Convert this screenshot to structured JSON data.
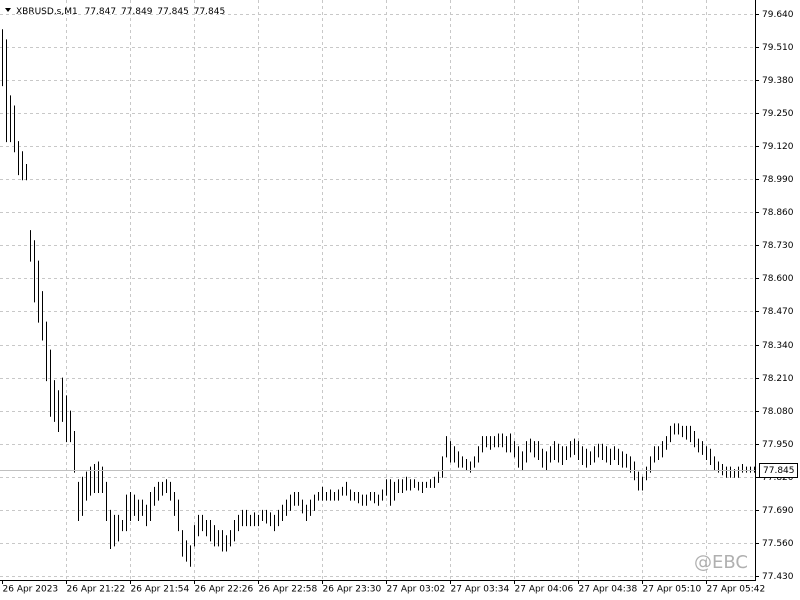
{
  "chart_data": {
    "type": "ohlc",
    "symbol": "XBRUSD.s,M1",
    "header_values": [
      77.847,
      77.849,
      77.845,
      77.845
    ],
    "watermark": "@EBC",
    "color": "#000000",
    "last_price": 77.845,
    "ylim": [
      77.414,
      79.695
    ],
    "yticks": [
      {
        "value": 79.64,
        "label": "79.640"
      },
      {
        "value": 79.51,
        "label": "79.510"
      },
      {
        "value": 79.38,
        "label": "79.380"
      },
      {
        "value": 79.25,
        "label": "79.250"
      },
      {
        "value": 79.12,
        "label": "79.120"
      },
      {
        "value": 78.99,
        "label": "78.990"
      },
      {
        "value": 78.86,
        "label": "78.860"
      },
      {
        "value": 78.73,
        "label": "78.730"
      },
      {
        "value": 78.6,
        "label": "78.600"
      },
      {
        "value": 78.47,
        "label": "78.470"
      },
      {
        "value": 78.34,
        "label": "78.340"
      },
      {
        "value": 78.21,
        "label": "78.210"
      },
      {
        "value": 78.08,
        "label": "78.080"
      },
      {
        "value": 77.95,
        "label": "77.950"
      },
      {
        "value": 77.82,
        "label": "77.820"
      },
      {
        "value": 77.69,
        "label": "77.690"
      },
      {
        "value": 77.56,
        "label": "77.560"
      },
      {
        "value": 77.43,
        "label": "77.430"
      }
    ],
    "grid": true,
    "categories": [
      "26 Apr 2023",
      null,
      null,
      null,
      null,
      null,
      null,
      null,
      null,
      null,
      null,
      null,
      null,
      null,
      null,
      null,
      "26 Apr 21:22",
      null,
      null,
      null,
      null,
      null,
      null,
      null,
      null,
      null,
      null,
      null,
      null,
      null,
      null,
      null,
      "26 Apr 21:54",
      null,
      null,
      null,
      null,
      null,
      null,
      null,
      null,
      null,
      null,
      null,
      null,
      null,
      null,
      null,
      "26 Apr 22:26",
      null,
      null,
      null,
      null,
      null,
      null,
      null,
      null,
      null,
      null,
      null,
      null,
      null,
      null,
      null,
      "26 Apr 22:58",
      null,
      null,
      null,
      null,
      null,
      null,
      null,
      null,
      null,
      null,
      null,
      null,
      null,
      null,
      null,
      "26 Apr 23:30",
      null,
      null,
      null,
      null,
      null,
      null,
      null,
      null,
      null,
      null,
      null,
      null,
      null,
      null,
      null,
      "27 Apr 03:02",
      null,
      null,
      null,
      null,
      null,
      null,
      null,
      null,
      null,
      null,
      null,
      null,
      null,
      null,
      null,
      "27 Apr 03:34",
      null,
      null,
      null,
      null,
      null,
      null,
      null,
      null,
      null,
      null,
      null,
      null,
      null,
      null,
      null,
      "27 Apr 04:06",
      null,
      null,
      null,
      null,
      null,
      null,
      null,
      null,
      null,
      null,
      null,
      null,
      null,
      null,
      null,
      "27 Apr 04:38",
      null,
      null,
      null,
      null,
      null,
      null,
      null,
      null,
      null,
      null,
      null,
      null,
      null,
      null,
      null,
      "27 Apr 05:10",
      null,
      null,
      null,
      null,
      null,
      null,
      null,
      null,
      null,
      null,
      null,
      null,
      null,
      null,
      null,
      "27 Apr 05:42",
      null,
      null,
      null,
      null,
      null,
      null,
      null,
      null,
      null,
      null,
      null,
      null
    ],
    "high": [
      79.58,
      79.54,
      79.32,
      79.28,
      79.14,
      79.1,
      79.05,
      78.79,
      78.75,
      78.67,
      78.55,
      78.43,
      78.32,
      78.2,
      78.16,
      78.21,
      78.14,
      78.08,
      78.0,
      77.8,
      77.82,
      77.84,
      77.86,
      77.87,
      77.88,
      77.86,
      77.8,
      77.69,
      77.67,
      77.67,
      77.65,
      77.75,
      77.76,
      77.75,
      77.73,
      77.73,
      77.71,
      77.76,
      77.78,
      77.8,
      77.8,
      77.81,
      77.8,
      77.76,
      77.73,
      77.61,
      77.57,
      77.55,
      77.63,
      77.67,
      77.67,
      77.65,
      77.65,
      77.63,
      77.61,
      77.61,
      77.59,
      77.61,
      77.65,
      77.67,
      77.69,
      77.69,
      77.67,
      77.68,
      77.67,
      77.69,
      77.69,
      77.68,
      77.67,
      77.69,
      77.71,
      77.73,
      77.75,
      77.76,
      77.76,
      77.73,
      77.71,
      77.73,
      77.75,
      77.76,
      77.78,
      77.76,
      77.77,
      77.76,
      77.77,
      77.78,
      77.8,
      77.77,
      77.76,
      77.76,
      77.75,
      77.75,
      77.76,
      77.76,
      77.75,
      77.77,
      77.81,
      77.81,
      77.8,
      77.81,
      77.81,
      77.82,
      77.81,
      77.81,
      77.8,
      77.8,
      77.8,
      77.81,
      77.82,
      77.84,
      77.9,
      77.98,
      77.96,
      77.94,
      77.92,
      77.9,
      77.89,
      77.88,
      77.9,
      77.94,
      77.98,
      77.98,
      77.98,
      77.98,
      77.99,
      77.99,
      77.98,
      77.99,
      77.96,
      77.94,
      77.92,
      77.96,
      77.97,
      77.96,
      77.96,
      77.93,
      77.92,
      77.94,
      77.96,
      77.95,
      77.94,
      77.94,
      77.96,
      77.97,
      77.96,
      77.94,
      77.93,
      77.92,
      77.94,
      77.95,
      77.95,
      77.94,
      77.93,
      77.94,
      77.93,
      77.92,
      77.91,
      77.9,
      77.88,
      77.84,
      77.82,
      77.86,
      77.9,
      77.94,
      77.94,
      77.96,
      77.98,
      78.02,
      78.03,
      78.03,
      78.02,
      78.02,
      78.02,
      78.0,
      77.97,
      77.96,
      77.94,
      77.93,
      77.9,
      77.88,
      77.87,
      77.86,
      77.86,
      77.85,
      77.86,
      77.87,
      77.86,
      77.86,
      77.86
    ],
    "low": [
      79.36,
      79.14,
      79.14,
      79.1,
      79.01,
      78.99,
      78.99,
      78.67,
      78.51,
      78.43,
      78.36,
      78.2,
      78.06,
      78.04,
      78.0,
      78.04,
      77.96,
      77.96,
      77.84,
      77.65,
      77.67,
      77.73,
      77.75,
      77.76,
      77.76,
      77.76,
      77.65,
      77.54,
      77.55,
      77.57,
      77.61,
      77.61,
      77.65,
      77.67,
      77.65,
      77.67,
      77.63,
      77.65,
      77.71,
      77.73,
      77.75,
      77.76,
      77.73,
      77.67,
      77.61,
      77.51,
      77.49,
      77.47,
      77.55,
      77.59,
      77.61,
      77.59,
      77.57,
      77.55,
      77.55,
      77.53,
      77.53,
      77.55,
      77.57,
      77.61,
      77.63,
      77.63,
      77.63,
      77.63,
      77.63,
      77.65,
      77.64,
      77.63,
      77.61,
      77.63,
      77.65,
      77.67,
      77.69,
      77.71,
      77.71,
      77.68,
      77.65,
      77.67,
      77.69,
      77.73,
      77.73,
      77.73,
      77.73,
      77.73,
      77.73,
      77.75,
      77.75,
      77.73,
      77.73,
      77.72,
      77.71,
      77.71,
      77.73,
      77.72,
      77.71,
      77.73,
      77.75,
      77.71,
      77.73,
      77.76,
      77.76,
      77.77,
      77.77,
      77.78,
      77.77,
      77.76,
      77.78,
      77.78,
      77.78,
      77.8,
      77.82,
      77.9,
      77.88,
      77.88,
      77.86,
      77.86,
      77.85,
      77.84,
      77.86,
      77.88,
      77.92,
      77.94,
      77.93,
      77.94,
      77.94,
      77.94,
      77.92,
      77.92,
      77.9,
      77.86,
      77.85,
      77.88,
      77.92,
      77.9,
      77.89,
      77.86,
      77.85,
      77.88,
      77.89,
      77.88,
      77.87,
      77.89,
      77.9,
      77.91,
      77.89,
      77.87,
      77.86,
      77.87,
      77.88,
      77.9,
      77.89,
      77.88,
      77.87,
      77.89,
      77.87,
      77.86,
      77.86,
      77.84,
      77.81,
      77.77,
      77.77,
      77.81,
      77.84,
      77.88,
      77.89,
      77.9,
      77.93,
      77.96,
      77.99,
      77.99,
      77.98,
      77.97,
      77.96,
      77.94,
      77.92,
      77.91,
      77.89,
      77.87,
      77.85,
      77.84,
      77.83,
      77.82,
      77.82,
      77.82,
      77.82,
      77.84,
      77.84,
      77.84,
      77.84
    ]
  }
}
